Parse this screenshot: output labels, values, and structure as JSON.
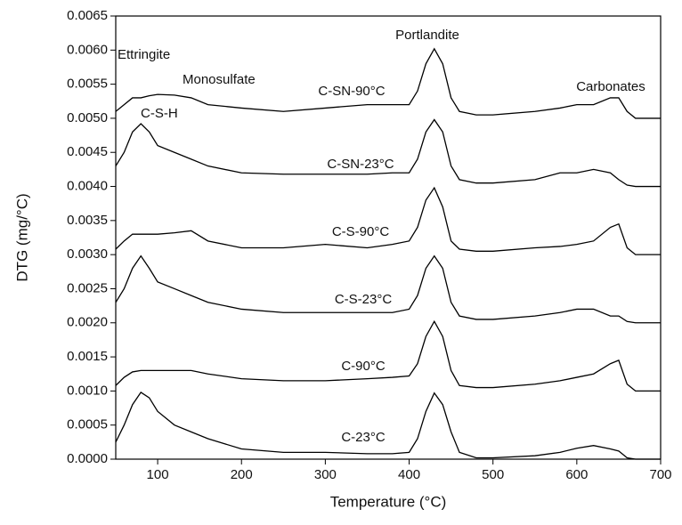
{
  "chart_data": {
    "type": "line",
    "xlabel": "Temperature (°C)",
    "ylabel": "DTG (mg/°C)",
    "annotations": [
      "Ettringite",
      "Monosulfate",
      "C-S-H",
      "Portlandite",
      "Carbonates"
    ],
    "xlim": [
      50,
      700
    ],
    "xticks": [
      100,
      200,
      300,
      400,
      500,
      600,
      700
    ],
    "ylim": [
      0,
      0.0065
    ],
    "yticks": [
      {
        "value": 0,
        "label": "0.0000"
      },
      {
        "value": 0.0005,
        "label": "0.0005"
      },
      {
        "value": 0.001,
        "label": "0.0010"
      },
      {
        "value": 0.0015,
        "label": "0.0015"
      },
      {
        "value": 0.002,
        "label": "0.0020"
      },
      {
        "value": 0.0025,
        "label": "0.0025"
      },
      {
        "value": 0.003,
        "label": "0.0030"
      },
      {
        "value": 0.0035,
        "label": "0.0035"
      },
      {
        "value": 0.004,
        "label": "0.0040"
      },
      {
        "value": 0.0045,
        "label": "0.0045"
      },
      {
        "value": 0.005,
        "label": "0.0050"
      },
      {
        "value": 0.0055,
        "label": "0.0055"
      },
      {
        "value": 0.006,
        "label": "0.0060"
      },
      {
        "value": 0.0065,
        "label": "0.0065"
      }
    ],
    "x": [
      50,
      60,
      70,
      80,
      90,
      100,
      120,
      140,
      160,
      200,
      250,
      300,
      350,
      380,
      400,
      410,
      420,
      430,
      440,
      450,
      460,
      480,
      500,
      550,
      580,
      600,
      620,
      640,
      650,
      660,
      670,
      700
    ],
    "series": [
      {
        "name": "C-SN-90°C",
        "color": "#000000",
        "values": [
          0.0051,
          0.0052,
          0.0053,
          0.0053,
          0.00533,
          0.00535,
          0.00534,
          0.0053,
          0.0052,
          0.00515,
          0.0051,
          0.00515,
          0.0052,
          0.0052,
          0.0052,
          0.0054,
          0.0058,
          0.00602,
          0.0058,
          0.0053,
          0.0051,
          0.00505,
          0.00505,
          0.0051,
          0.00515,
          0.0052,
          0.0052,
          0.0053,
          0.0053,
          0.0051,
          0.005,
          0.005
        ]
      },
      {
        "name": "C-SN-23°C",
        "color": "#000000",
        "values": [
          0.0043,
          0.0045,
          0.0048,
          0.00492,
          0.0048,
          0.0046,
          0.0045,
          0.0044,
          0.0043,
          0.0042,
          0.00418,
          0.00418,
          0.00418,
          0.0042,
          0.0042,
          0.0044,
          0.0048,
          0.00498,
          0.0048,
          0.0043,
          0.0041,
          0.00405,
          0.00405,
          0.0041,
          0.0042,
          0.0042,
          0.00425,
          0.0042,
          0.0041,
          0.00402,
          0.004,
          0.004
        ]
      },
      {
        "name": "C-S-90°C",
        "color": "#000000",
        "values": [
          0.00308,
          0.0032,
          0.0033,
          0.0033,
          0.0033,
          0.0033,
          0.00332,
          0.00335,
          0.0032,
          0.0031,
          0.0031,
          0.00315,
          0.0031,
          0.00315,
          0.0032,
          0.0034,
          0.0038,
          0.00398,
          0.0037,
          0.0032,
          0.00308,
          0.00305,
          0.00305,
          0.0031,
          0.00312,
          0.00315,
          0.0032,
          0.0034,
          0.00345,
          0.0031,
          0.003,
          0.003
        ]
      },
      {
        "name": "C-S-23°C",
        "color": "#000000",
        "values": [
          0.0023,
          0.0025,
          0.0028,
          0.00298,
          0.0028,
          0.0026,
          0.0025,
          0.0024,
          0.0023,
          0.0022,
          0.00215,
          0.00215,
          0.00215,
          0.00215,
          0.0022,
          0.0024,
          0.0028,
          0.00298,
          0.0028,
          0.0023,
          0.0021,
          0.00205,
          0.00205,
          0.0021,
          0.00215,
          0.0022,
          0.0022,
          0.0021,
          0.0021,
          0.00202,
          0.002,
          0.002
        ]
      },
      {
        "name": "C-90°C",
        "color": "#000000",
        "values": [
          0.00108,
          0.0012,
          0.00128,
          0.0013,
          0.0013,
          0.0013,
          0.0013,
          0.0013,
          0.00125,
          0.00118,
          0.00115,
          0.00115,
          0.00118,
          0.0012,
          0.00122,
          0.0014,
          0.0018,
          0.00202,
          0.0018,
          0.0013,
          0.00108,
          0.00105,
          0.00105,
          0.0011,
          0.00115,
          0.0012,
          0.00125,
          0.0014,
          0.00145,
          0.0011,
          0.001,
          0.001
        ]
      },
      {
        "name": "C-23°C",
        "color": "#000000",
        "values": [
          0.00025,
          0.0005,
          0.0008,
          0.00098,
          0.0009,
          0.0007,
          0.0005,
          0.0004,
          0.0003,
          0.00015,
          0.0001,
          0.0001,
          8e-05,
          8e-05,
          0.0001,
          0.0003,
          0.0007,
          0.00097,
          0.0008,
          0.0004,
          0.0001,
          2e-05,
          2e-05,
          5e-05,
          0.0001,
          0.00016,
          0.0002,
          0.00015,
          0.00012,
          2e-05,
          0,
          0
        ]
      }
    ]
  }
}
